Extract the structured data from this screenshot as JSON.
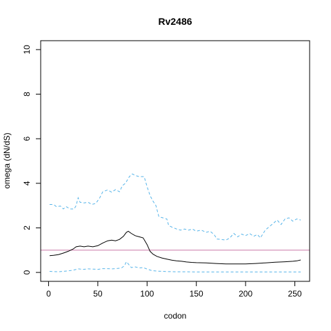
{
  "chart_data": {
    "type": "line",
    "title": "Rv2486",
    "xlabel": "codon",
    "ylabel": "omega (dN/dS)",
    "xlim": [
      -8,
      265
    ],
    "ylim": [
      -0.4,
      10.4
    ],
    "x_ticks": [
      0,
      50,
      100,
      150,
      200,
      250
    ],
    "y_ticks": [
      0,
      2,
      4,
      6,
      8,
      10
    ],
    "reference_line": {
      "y": 1,
      "color": "#cc79a7"
    },
    "colors": {
      "mean": "#000000",
      "bounds": "#56b4e9"
    },
    "series": [
      {
        "role": "upper",
        "style": "dashed",
        "points": [
          [
            1,
            3.05
          ],
          [
            5,
            3.05
          ],
          [
            8,
            2.95
          ],
          [
            12,
            2.98
          ],
          [
            15,
            2.85
          ],
          [
            18,
            2.95
          ],
          [
            20,
            2.9
          ],
          [
            22,
            2.85
          ],
          [
            26,
            2.85
          ],
          [
            28,
            3.0
          ],
          [
            30,
            3.35
          ],
          [
            32,
            3.15
          ],
          [
            36,
            3.12
          ],
          [
            40,
            3.15
          ],
          [
            44,
            3.05
          ],
          [
            48,
            3.1
          ],
          [
            52,
            3.35
          ],
          [
            55,
            3.62
          ],
          [
            60,
            3.7
          ],
          [
            64,
            3.6
          ],
          [
            68,
            3.72
          ],
          [
            72,
            3.62
          ],
          [
            75,
            3.9
          ],
          [
            78,
            4.0
          ],
          [
            82,
            4.3
          ],
          [
            85,
            4.42
          ],
          [
            88,
            4.35
          ],
          [
            92,
            4.3
          ],
          [
            97,
            4.3
          ],
          [
            100,
            3.85
          ],
          [
            103,
            3.45
          ],
          [
            106,
            3.2
          ],
          [
            109,
            3.0
          ],
          [
            112,
            2.5
          ],
          [
            116,
            2.45
          ],
          [
            120,
            2.4
          ],
          [
            122,
            2.1
          ],
          [
            126,
            2.02
          ],
          [
            130,
            1.95
          ],
          [
            134,
            1.9
          ],
          [
            138,
            1.95
          ],
          [
            142,
            1.9
          ],
          [
            146,
            1.95
          ],
          [
            150,
            1.85
          ],
          [
            155,
            1.9
          ],
          [
            160,
            1.8
          ],
          [
            164,
            1.85
          ],
          [
            168,
            1.7
          ],
          [
            171,
            1.5
          ],
          [
            175,
            1.48
          ],
          [
            180,
            1.45
          ],
          [
            184,
            1.55
          ],
          [
            188,
            1.75
          ],
          [
            192,
            1.6
          ],
          [
            196,
            1.72
          ],
          [
            200,
            1.65
          ],
          [
            204,
            1.75
          ],
          [
            208,
            1.62
          ],
          [
            212,
            1.7
          ],
          [
            215,
            1.55
          ],
          [
            220,
            1.9
          ],
          [
            224,
            2.05
          ],
          [
            228,
            2.2
          ],
          [
            232,
            2.35
          ],
          [
            236,
            2.15
          ],
          [
            240,
            2.4
          ],
          [
            244,
            2.45
          ],
          [
            248,
            2.3
          ],
          [
            252,
            2.4
          ],
          [
            256,
            2.35
          ]
        ]
      },
      {
        "role": "mean",
        "style": "solid",
        "points": [
          [
            1,
            0.75
          ],
          [
            5,
            0.77
          ],
          [
            10,
            0.8
          ],
          [
            15,
            0.87
          ],
          [
            20,
            0.95
          ],
          [
            25,
            1.05
          ],
          [
            28,
            1.15
          ],
          [
            32,
            1.18
          ],
          [
            36,
            1.15
          ],
          [
            40,
            1.18
          ],
          [
            45,
            1.15
          ],
          [
            50,
            1.2
          ],
          [
            55,
            1.32
          ],
          [
            60,
            1.42
          ],
          [
            64,
            1.45
          ],
          [
            68,
            1.42
          ],
          [
            72,
            1.48
          ],
          [
            76,
            1.62
          ],
          [
            79,
            1.8
          ],
          [
            81,
            1.85
          ],
          [
            84,
            1.75
          ],
          [
            88,
            1.65
          ],
          [
            92,
            1.6
          ],
          [
            96,
            1.55
          ],
          [
            100,
            1.25
          ],
          [
            103,
            0.95
          ],
          [
            106,
            0.82
          ],
          [
            110,
            0.72
          ],
          [
            115,
            0.65
          ],
          [
            120,
            0.6
          ],
          [
            125,
            0.55
          ],
          [
            130,
            0.52
          ],
          [
            135,
            0.5
          ],
          [
            140,
            0.47
          ],
          [
            145,
            0.45
          ],
          [
            150,
            0.44
          ],
          [
            160,
            0.43
          ],
          [
            170,
            0.4
          ],
          [
            180,
            0.38
          ],
          [
            190,
            0.38
          ],
          [
            200,
            0.38
          ],
          [
            210,
            0.4
          ],
          [
            220,
            0.43
          ],
          [
            230,
            0.46
          ],
          [
            240,
            0.48
          ],
          [
            248,
            0.5
          ],
          [
            252,
            0.52
          ],
          [
            256,
            0.56
          ]
        ]
      },
      {
        "role": "lower",
        "style": "dashed",
        "points": [
          [
            1,
            0.05
          ],
          [
            5,
            0.04
          ],
          [
            10,
            0.03
          ],
          [
            15,
            0.05
          ],
          [
            20,
            0.07
          ],
          [
            25,
            0.1
          ],
          [
            30,
            0.16
          ],
          [
            35,
            0.14
          ],
          [
            40,
            0.16
          ],
          [
            45,
            0.15
          ],
          [
            50,
            0.14
          ],
          [
            55,
            0.17
          ],
          [
            60,
            0.17
          ],
          [
            65,
            0.16
          ],
          [
            70,
            0.18
          ],
          [
            74,
            0.2
          ],
          [
            77,
            0.3
          ],
          [
            79,
            0.48
          ],
          [
            81,
            0.38
          ],
          [
            84,
            0.22
          ],
          [
            88,
            0.25
          ],
          [
            92,
            0.2
          ],
          [
            96,
            0.22
          ],
          [
            100,
            0.15
          ],
          [
            105,
            0.08
          ],
          [
            110,
            0.06
          ],
          [
            120,
            0.04
          ],
          [
            130,
            0.03
          ],
          [
            140,
            0.03
          ],
          [
            150,
            0.02
          ],
          [
            170,
            0.02
          ],
          [
            190,
            0.02
          ],
          [
            210,
            0.02
          ],
          [
            230,
            0.02
          ],
          [
            256,
            0.02
          ]
        ]
      }
    ]
  }
}
